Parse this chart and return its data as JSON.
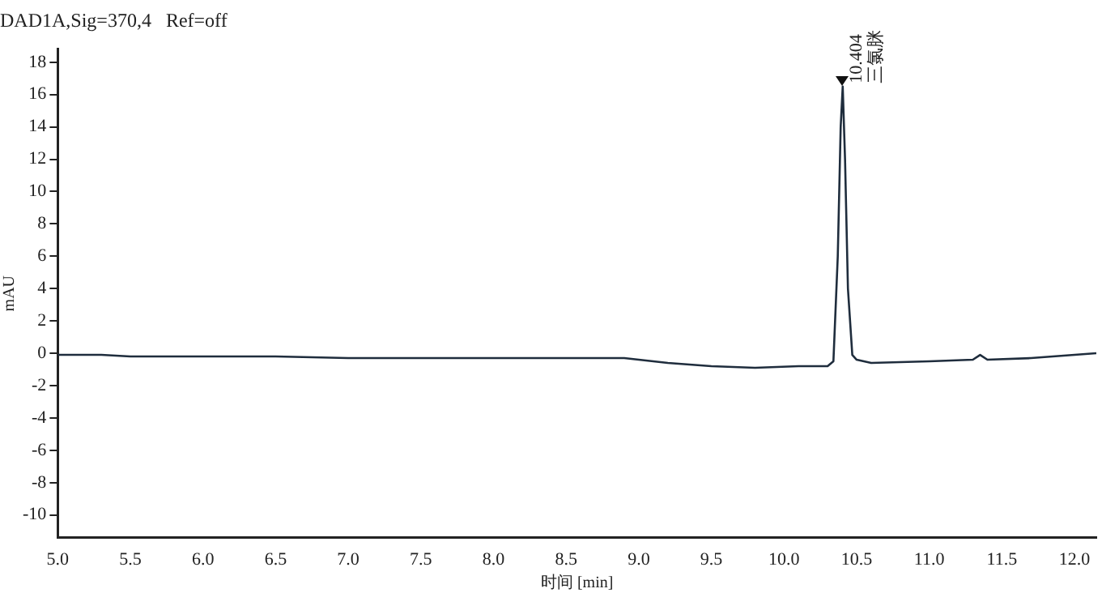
{
  "chart_data": {
    "type": "line",
    "title": "DAD1A,Sig=370,4   Ref=off",
    "xlabel": "时间 [min]",
    "ylabel": "mAU",
    "x": [
      5.0,
      5.3,
      5.5,
      6.0,
      6.5,
      7.0,
      7.5,
      8.0,
      8.5,
      8.9,
      9.2,
      9.5,
      9.8,
      10.1,
      10.3,
      10.34,
      10.37,
      10.39,
      10.404,
      10.42,
      10.44,
      10.47,
      10.5,
      10.6,
      11.0,
      11.3,
      11.35,
      11.4,
      11.7,
      12.0,
      12.15
    ],
    "series": [
      {
        "color": "#1f2d3d",
        "values": [
          -0.1,
          -0.1,
          -0.2,
          -0.2,
          -0.2,
          -0.3,
          -0.3,
          -0.3,
          -0.3,
          -0.3,
          -0.6,
          -0.8,
          -0.9,
          -0.8,
          -0.8,
          -0.5,
          6,
          14,
          16.5,
          12,
          4,
          -0.1,
          -0.4,
          -0.6,
          -0.5,
          -0.4,
          -0.1,
          -0.4,
          -0.3,
          -0.1,
          0.0
        ]
      }
    ],
    "xlim": [
      5.0,
      12.15
    ],
    "xticks": [
      {
        "value": 5,
        "label": "5.0"
      },
      5.5,
      {
        "value": 6,
        "label": "6.0"
      },
      6.5,
      {
        "value": 7,
        "label": "7.0"
      },
      7.5,
      {
        "value": 8,
        "label": "8.0"
      },
      8.5,
      {
        "value": 9,
        "label": "9.0"
      },
      9.5,
      {
        "value": 10,
        "label": "10.0"
      },
      10.5,
      {
        "value": 11,
        "label": "11.0"
      },
      11.5,
      {
        "value": 12,
        "label": "12.0"
      }
    ],
    "ylim": [
      -11.4,
      18.8
    ],
    "yticks": [
      -10,
      -8,
      -6,
      -4,
      -2,
      0,
      2,
      4,
      6,
      8,
      10,
      12,
      14,
      16,
      18
    ],
    "annotations": [
      {
        "text": "10.404",
        "x": 10.404,
        "y": 16.5
      },
      {
        "text": "三氯脒",
        "x": 10.404,
        "y": 16.5
      }
    ],
    "grid": false,
    "legend": false,
    "marker": "none",
    "line_style": "solid"
  }
}
